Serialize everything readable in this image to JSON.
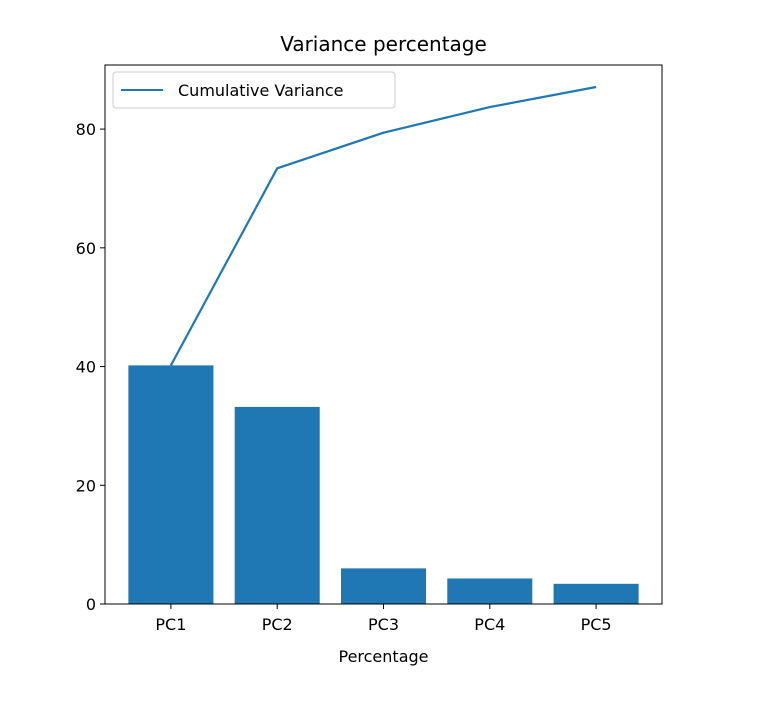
{
  "chart_data": {
    "type": "bar",
    "title": "Variance percentage",
    "xlabel": "Percentage",
    "ylabel": "",
    "categories": [
      "PC1",
      "PC2",
      "PC3",
      "PC4",
      "PC5"
    ],
    "series": [
      {
        "type": "bar",
        "values": [
          40.2,
          33.2,
          6.0,
          4.3,
          3.4
        ],
        "color": "#1f77b4"
      },
      {
        "name": "Cumulative Variance",
        "type": "line",
        "values": [
          40.2,
          73.4,
          79.4,
          83.7,
          87.1
        ],
        "color": "#1f77b4"
      }
    ],
    "ylim": [
      0,
      90.8
    ],
    "yticks": [
      0,
      20,
      40,
      60,
      80
    ],
    "grid": false,
    "legend": {
      "position": "upper-left",
      "entries": [
        "Cumulative Variance"
      ]
    }
  }
}
